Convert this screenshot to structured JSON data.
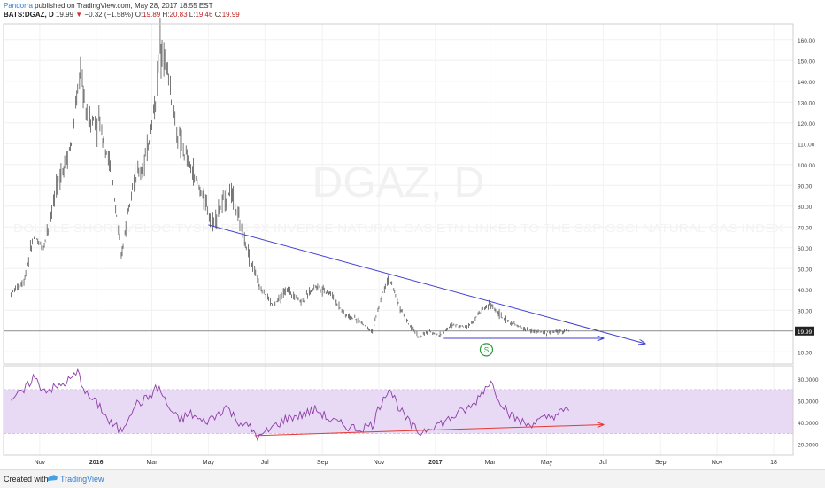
{
  "header": {
    "author": "Pandorra",
    "published": "published on TradingView.com, May 28, 2017 18:55 EST",
    "symbol": "BATS:DGAZ, D",
    "last": "19.99",
    "change": "−0.32 (−1.58%)",
    "o_label": "O:",
    "o_val": "19.89",
    "h_label": "H:",
    "h_val": "20.83",
    "l_label": "L:",
    "l_val": "19.46",
    "c_label": "C:",
    "c_val": "19.99"
  },
  "watermark": {
    "symbol": "DGAZ, D",
    "description": "DOUBLE SHORT VELOCITYSHARES 3X INVERSE NATURAL GAS ETN LINKED TO THE S&P GSCI NATURAL GAS INDEX"
  },
  "colors": {
    "candle": "#555555",
    "trendline": "#3f3fd4",
    "rsi_line": "#8e3fa8",
    "rsi_band": "#e8d9f5",
    "rsi_trend": "#e53935",
    "event_marker": "#2e9a3a"
  },
  "event_marker_label": "S",
  "footer": {
    "created": "Created with",
    "brand": "TradingView"
  },
  "chart_data": [
    {
      "type": "candlestick",
      "title": "BATS:DGAZ, D",
      "x_tick_labels": [
        "Nov",
        "2016",
        "Mar",
        "May",
        "Jul",
        "Sep",
        "Nov",
        "2017",
        "Mar",
        "May",
        "Jul",
        "Sep",
        "Nov",
        "18"
      ],
      "y_tick_labels": [
        "10.00",
        "20.00",
        "30.00",
        "40.00",
        "50.00",
        "60.00",
        "70.00",
        "80.00",
        "90.00",
        "100.00",
        "110.00",
        "120.00",
        "130.00",
        "140.00",
        "150.00",
        "160.00"
      ],
      "ylim": [
        5,
        165
      ],
      "last_price": "19.99",
      "price_path": [
        [
          "2015-10-01",
          38
        ],
        [
          "2015-10-15",
          44
        ],
        [
          "2015-10-25",
          65
        ],
        [
          "2015-11-05",
          60
        ],
        [
          "2015-11-20",
          90
        ],
        [
          "2015-12-05",
          110
        ],
        [
          "2015-12-15",
          145
        ],
        [
          "2015-12-22",
          122
        ],
        [
          "2016-01-05",
          120
        ],
        [
          "2016-01-18",
          95
        ],
        [
          "2016-01-28",
          55
        ],
        [
          "2016-02-08",
          90
        ],
        [
          "2016-02-22",
          100
        ],
        [
          "2016-03-05",
          130
        ],
        [
          "2016-03-10",
          160
        ],
        [
          "2016-03-18",
          145
        ],
        [
          "2016-03-28",
          115
        ],
        [
          "2016-04-10",
          100
        ],
        [
          "2016-04-25",
          85
        ],
        [
          "2016-05-05",
          72
        ],
        [
          "2016-05-15",
          80
        ],
        [
          "2016-05-25",
          88
        ],
        [
          "2016-06-05",
          70
        ],
        [
          "2016-06-15",
          55
        ],
        [
          "2016-06-25",
          42
        ],
        [
          "2016-07-10",
          32
        ],
        [
          "2016-07-25",
          40
        ],
        [
          "2016-08-10",
          34
        ],
        [
          "2016-08-25",
          42
        ],
        [
          "2016-09-10",
          38
        ],
        [
          "2016-09-25",
          28
        ],
        [
          "2016-10-10",
          25
        ],
        [
          "2016-10-25",
          20
        ],
        [
          "2016-11-05",
          38
        ],
        [
          "2016-11-12",
          46
        ],
        [
          "2016-11-25",
          30
        ],
        [
          "2016-12-05",
          22
        ],
        [
          "2016-12-15",
          17
        ],
        [
          "2016-12-25",
          20
        ],
        [
          "2017-01-05",
          18
        ],
        [
          "2017-01-20",
          23
        ],
        [
          "2017-02-05",
          22
        ],
        [
          "2017-02-20",
          30
        ],
        [
          "2017-03-01",
          33
        ],
        [
          "2017-03-15",
          26
        ],
        [
          "2017-04-01",
          22
        ],
        [
          "2017-04-15",
          20
        ],
        [
          "2017-05-01",
          19
        ],
        [
          "2017-05-15",
          20
        ],
        [
          "2017-05-26",
          19.99
        ]
      ],
      "trendlines": [
        {
          "from": [
            "2016-05-01",
            71
          ],
          "to": [
            "2017-08-15",
            14
          ]
        },
        {
          "from": [
            "2017-01-10",
            16.5
          ],
          "to": [
            "2017-07-01",
            16.5
          ]
        }
      ],
      "event": {
        "date": "2017-02-25",
        "value": 11
      }
    },
    {
      "type": "line",
      "title": "RSI",
      "y_tick_labels": [
        "20.0000",
        "40.0000",
        "60.0000",
        "80.0000"
      ],
      "ylim": [
        10,
        92
      ],
      "band": [
        30,
        70
      ],
      "values": [
        [
          "2015-10-01",
          62
        ],
        [
          "2015-10-15",
          68
        ],
        [
          "2015-10-25",
          82
        ],
        [
          "2015-11-05",
          70
        ],
        [
          "2015-11-20",
          72
        ],
        [
          "2015-12-05",
          80
        ],
        [
          "2015-12-12",
          86
        ],
        [
          "2015-12-22",
          65
        ],
        [
          "2016-01-05",
          55
        ],
        [
          "2016-01-15",
          40
        ],
        [
          "2016-01-28",
          32
        ],
        [
          "2016-02-10",
          55
        ],
        [
          "2016-02-25",
          62
        ],
        [
          "2016-03-08",
          73
        ],
        [
          "2016-03-18",
          55
        ],
        [
          "2016-03-30",
          42
        ],
        [
          "2016-04-12",
          48
        ],
        [
          "2016-04-25",
          40
        ],
        [
          "2016-05-08",
          45
        ],
        [
          "2016-05-20",
          55
        ],
        [
          "2016-06-01",
          42
        ],
        [
          "2016-06-15",
          35
        ],
        [
          "2016-06-25",
          26
        ],
        [
          "2016-07-10",
          36
        ],
        [
          "2016-07-25",
          44
        ],
        [
          "2016-08-10",
          47
        ],
        [
          "2016-08-25",
          52
        ],
        [
          "2016-09-10",
          42
        ],
        [
          "2016-09-25",
          37
        ],
        [
          "2016-10-10",
          34
        ],
        [
          "2016-10-25",
          38
        ],
        [
          "2016-11-05",
          62
        ],
        [
          "2016-11-12",
          72
        ],
        [
          "2016-11-25",
          50
        ],
        [
          "2016-12-05",
          38
        ],
        [
          "2016-12-15",
          30
        ],
        [
          "2016-12-25",
          36
        ],
        [
          "2017-01-10",
          40
        ],
        [
          "2017-01-25",
          48
        ],
        [
          "2017-02-10",
          55
        ],
        [
          "2017-02-22",
          70
        ],
        [
          "2017-03-01",
          78
        ],
        [
          "2017-03-12",
          60
        ],
        [
          "2017-03-25",
          45
        ],
        [
          "2017-04-10",
          38
        ],
        [
          "2017-04-25",
          42
        ],
        [
          "2017-05-10",
          47
        ],
        [
          "2017-05-26",
          52
        ]
      ],
      "trendline": {
        "from": [
          "2016-06-20",
          28
        ],
        "to": [
          "2017-07-01",
          38
        ]
      }
    }
  ]
}
